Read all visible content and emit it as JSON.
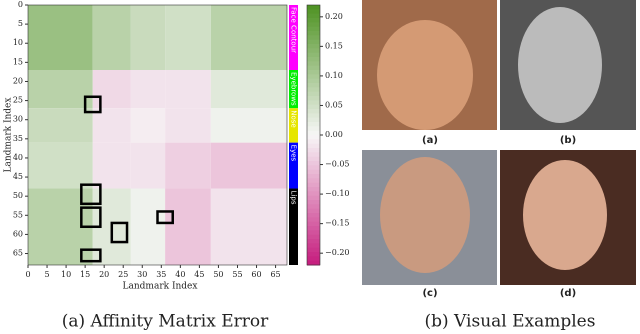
{
  "chart_data": {
    "type": "heatmap",
    "xlabel": "Landmark Index",
    "ylabel": "Landmark Index",
    "xlim": [
      0,
      68
    ],
    "ylim": [
      0,
      68
    ],
    "xticks": [
      0,
      5,
      10,
      15,
      20,
      25,
      30,
      35,
      40,
      45,
      50,
      55,
      60,
      65
    ],
    "yticks": [
      0,
      5,
      10,
      15,
      20,
      25,
      30,
      35,
      40,
      45,
      50,
      55,
      60,
      65
    ],
    "groups": [
      {
        "name": "Face Contour",
        "start": 0,
        "end": 17,
        "color": "#ff00ff"
      },
      {
        "name": "Eyebrows",
        "start": 17,
        "end": 27,
        "color": "#00ee00"
      },
      {
        "name": "Nose",
        "start": 27,
        "end": 36,
        "color": "#e6e600"
      },
      {
        "name": "Eyes",
        "start": 36,
        "end": 48,
        "color": "#0000ff"
      },
      {
        "name": "Lips",
        "start": 48,
        "end": 68,
        "color": "#000000"
      }
    ],
    "values": [
      [
        0.12,
        0.08,
        0.06,
        0.05,
        0.08
      ],
      [
        0.08,
        -0.03,
        -0.02,
        -0.02,
        0.03
      ],
      [
        0.06,
        -0.02,
        -0.01,
        -0.02,
        0.01
      ],
      [
        0.05,
        -0.02,
        -0.02,
        -0.04,
        -0.05
      ],
      [
        0.08,
        0.03,
        0.01,
        -0.05,
        -0.02
      ]
    ],
    "colormap": [
      "#c51b7d",
      "#f7f7f7",
      "#4d9221"
    ],
    "clim": [
      -0.22,
      0.22
    ],
    "cticks": [
      {
        "value": 0.2,
        "label": "0.20"
      },
      {
        "value": 0.15,
        "label": "0.15"
      },
      {
        "value": 0.1,
        "label": "0.10"
      },
      {
        "value": 0.05,
        "label": "0.05"
      },
      {
        "value": 0,
        "label": "0.00"
      },
      {
        "value": -0.05,
        "label": "−0.05"
      },
      {
        "value": -0.1,
        "label": "−0.10"
      },
      {
        "value": -0.15,
        "label": "−0.15"
      },
      {
        "value": -0.2,
        "label": "−0.20"
      }
    ],
    "highlights": [
      {
        "x": [
          15,
          19
        ],
        "y": [
          24,
          28
        ]
      },
      {
        "x": [
          14,
          19
        ],
        "y": [
          47,
          52
        ]
      },
      {
        "x": [
          14,
          19
        ],
        "y": [
          53,
          58
        ]
      },
      {
        "x": [
          22,
          26
        ],
        "y": [
          57,
          62
        ]
      },
      {
        "x": [
          34,
          38
        ],
        "y": [
          54,
          57
        ]
      },
      {
        "x": [
          14,
          19
        ],
        "y": [
          64,
          67
        ]
      }
    ]
  },
  "examples": [
    "(a)",
    "(b)",
    "(c)",
    "(d)"
  ],
  "captions": [
    "(a) Affinity Matrix Error",
    "(b) Visual Examples"
  ]
}
